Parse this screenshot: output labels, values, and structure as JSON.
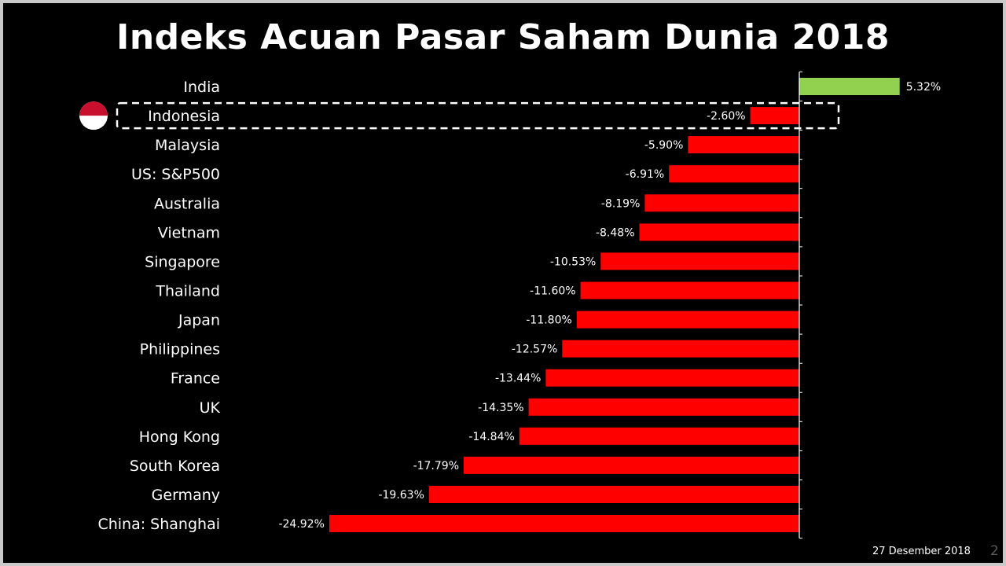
{
  "slide": {
    "title": "Indeks Acuan Pasar Saham Dunia 2018",
    "date": "27 Desember 2018",
    "page_number": "2"
  },
  "highlight": {
    "category": "Indonesia",
    "flag_icon": "indonesia-flag-icon",
    "box_style": "dashed-white"
  },
  "colors": {
    "background": "#000000",
    "positive": "#92d050",
    "negative": "#ff0000",
    "text": "#ffffff"
  },
  "chart_data": {
    "type": "bar",
    "orientation": "horizontal",
    "title": "Indeks Acuan Pasar Saham Dunia 2018",
    "categories": [
      "India",
      "Indonesia",
      "Malaysia",
      "US: S&P500",
      "Australia",
      "Vietnam",
      "Singapore",
      "Thailand",
      "Japan",
      "Philippines",
      "France",
      "UK",
      "Hong Kong",
      "South Korea",
      "Germany",
      "China: Shanghai"
    ],
    "values": [
      5.32,
      -2.6,
      -5.9,
      -6.91,
      -8.19,
      -8.48,
      -10.53,
      -11.6,
      -11.8,
      -12.57,
      -13.44,
      -14.35,
      -14.84,
      -17.79,
      -19.63,
      -24.92
    ],
    "value_labels": [
      "5.32%",
      "-2.60%",
      "-5.90%",
      "-6.91%",
      "-8.19%",
      "-8.48%",
      "-10.53%",
      "-11.60%",
      "-11.80%",
      "-12.57%",
      "-13.44%",
      "-14.35%",
      "-14.84%",
      "-17.79%",
      "-19.63%",
      "-24.92%"
    ],
    "unit": "%",
    "xlim": [
      -25,
      5.5
    ],
    "grid": false,
    "legend": "none"
  }
}
